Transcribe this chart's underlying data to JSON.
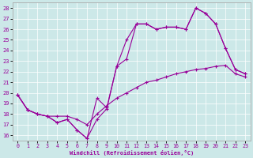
{
  "xlabel": "Windchill (Refroidissement éolien,°C)",
  "bg_color": "#cce8e8",
  "line_color": "#990099",
  "xlim": [
    -0.5,
    23.5
  ],
  "ylim": [
    15.5,
    28.5
  ],
  "yticks": [
    16,
    17,
    18,
    19,
    20,
    21,
    22,
    23,
    24,
    25,
    26,
    27,
    28
  ],
  "xticks": [
    0,
    1,
    2,
    3,
    4,
    5,
    6,
    7,
    8,
    9,
    10,
    11,
    12,
    13,
    14,
    15,
    16,
    17,
    18,
    19,
    20,
    21,
    22,
    23
  ],
  "series": [
    {
      "x": [
        0,
        1,
        2,
        3,
        4,
        5,
        6,
        7,
        8,
        9,
        10,
        11,
        12,
        13,
        14,
        15,
        16,
        17,
        18,
        19,
        20,
        21,
        22,
        23
      ],
      "y": [
        19.8,
        18.4,
        18.0,
        17.8,
        17.2,
        17.5,
        16.5,
        15.7,
        19.5,
        18.6,
        22.5,
        25.0,
        26.5,
        26.5,
        26.0,
        26.2,
        26.2,
        26.0,
        28.0,
        27.5,
        26.5,
        24.2,
        22.2,
        21.8
      ]
    },
    {
      "x": [
        0,
        1,
        2,
        3,
        4,
        5,
        6,
        7,
        8,
        9,
        10,
        11,
        12,
        13,
        14,
        15,
        16,
        17,
        18,
        19,
        20,
        21,
        22,
        23
      ],
      "y": [
        19.8,
        18.4,
        18.0,
        17.8,
        17.2,
        17.5,
        16.5,
        15.7,
        17.5,
        18.5,
        22.5,
        23.2,
        26.5,
        26.5,
        26.0,
        26.2,
        26.2,
        26.0,
        28.0,
        27.5,
        26.5,
        24.2,
        22.2,
        21.8
      ]
    },
    {
      "x": [
        0,
        1,
        2,
        3,
        4,
        5,
        6,
        7,
        8,
        9,
        10,
        11,
        12,
        13,
        14,
        15,
        16,
        17,
        18,
        19,
        20,
        21,
        22,
        23
      ],
      "y": [
        19.8,
        18.4,
        18.0,
        17.8,
        17.8,
        17.8,
        17.5,
        17.0,
        18.0,
        18.8,
        19.5,
        20.0,
        20.5,
        21.0,
        21.2,
        21.5,
        21.8,
        22.0,
        22.2,
        22.3,
        22.5,
        22.6,
        21.8,
        21.5
      ]
    }
  ]
}
